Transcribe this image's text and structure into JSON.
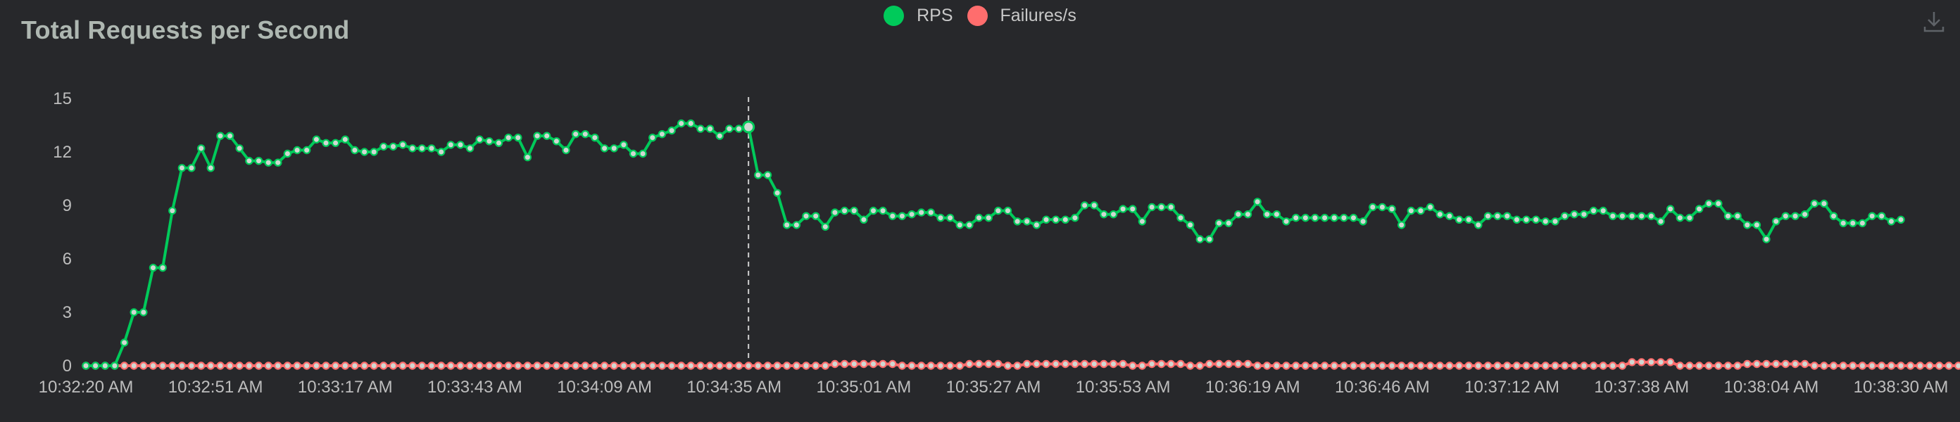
{
  "colors": {
    "background": "#27282b",
    "rps": "#00ca5a",
    "failures": "#ff6d6d",
    "point_fill": "#cfd8d2",
    "title": "#aeb7b1",
    "text": "#c8c8c8"
  },
  "icons": {
    "download": "download-icon"
  },
  "chart_data": {
    "type": "line",
    "title": "Total Requests per Second",
    "xlabel": "",
    "ylabel": "",
    "ylim": [
      0,
      15
    ],
    "yticks": [
      "0",
      "3",
      "6",
      "9",
      "12",
      "15"
    ],
    "xticks": [
      "10:32:20 AM",
      "10:32:51 AM",
      "10:33:17 AM",
      "10:33:43 AM",
      "10:34:09 AM",
      "10:34:35 AM",
      "10:35:01 AM",
      "10:35:27 AM",
      "10:35:53 AM",
      "10:36:19 AM",
      "10:36:46 AM",
      "10:37:12 AM",
      "10:37:38 AM",
      "10:38:04 AM",
      "10:38:30 AM"
    ],
    "legend_position": "top-center",
    "grid": false,
    "marker_index": 69,
    "series": [
      {
        "name": "RPS",
        "color": "#00ca5a",
        "values": [
          0,
          0,
          0,
          0,
          1.3,
          3,
          3,
          5.5,
          5.5,
          8.7,
          11.1,
          11.1,
          12.2,
          11.1,
          12.9,
          12.9,
          12.2,
          11.5,
          11.5,
          11.4,
          11.4,
          11.9,
          12.1,
          12.1,
          12.7,
          12.5,
          12.5,
          12.7,
          12.1,
          12.0,
          12.0,
          12.3,
          12.3,
          12.4,
          12.2,
          12.2,
          12.2,
          12.0,
          12.4,
          12.4,
          12.2,
          12.7,
          12.6,
          12.5,
          12.8,
          12.8,
          11.7,
          12.9,
          12.9,
          12.6,
          12.1,
          13.0,
          13.0,
          12.8,
          12.2,
          12.2,
          12.4,
          11.9,
          11.9,
          12.8,
          13.0,
          13.2,
          13.6,
          13.6,
          13.3,
          13.3,
          12.9,
          13.3,
          13.3,
          13.4,
          10.7,
          10.7,
          9.7,
          7.9,
          7.9,
          8.4,
          8.4,
          7.8,
          8.6,
          8.7,
          8.7,
          8.2,
          8.7,
          8.7,
          8.4,
          8.4,
          8.5,
          8.6,
          8.6,
          8.3,
          8.3,
          7.9,
          7.9,
          8.3,
          8.3,
          8.7,
          8.7,
          8.1,
          8.1,
          7.9,
          8.2,
          8.2,
          8.2,
          8.3,
          9.0,
          9.0,
          8.5,
          8.5,
          8.8,
          8.8,
          8.1,
          8.9,
          8.9,
          8.9,
          8.3,
          7.9,
          7.1,
          7.1,
          8.0,
          8.0,
          8.5,
          8.5,
          9.2,
          8.5,
          8.5,
          8.1,
          8.3,
          8.3,
          8.3,
          8.3,
          8.3,
          8.3,
          8.3,
          8.1,
          8.9,
          8.9,
          8.8,
          7.9,
          8.7,
          8.7,
          8.9,
          8.5,
          8.4,
          8.2,
          8.2,
          7.9,
          8.4,
          8.4,
          8.4,
          8.2,
          8.2,
          8.2,
          8.1,
          8.1,
          8.4,
          8.5,
          8.5,
          8.7,
          8.7,
          8.4,
          8.4,
          8.4,
          8.4,
          8.4,
          8.1,
          8.8,
          8.3,
          8.3,
          8.8,
          9.1,
          9.1,
          8.4,
          8.4,
          7.9,
          7.9,
          7.1,
          8.1,
          8.4,
          8.4,
          8.5,
          9.1,
          9.1,
          8.4,
          8.0,
          8.0,
          8.0,
          8.4,
          8.4,
          8.1,
          8.2
        ]
      },
      {
        "name": "Failures/s",
        "color": "#ff6d6d",
        "values": [
          0,
          0,
          0,
          0,
          0,
          0,
          0,
          0,
          0,
          0,
          0,
          0,
          0,
          0,
          0,
          0,
          0,
          0,
          0,
          0,
          0,
          0,
          0,
          0,
          0,
          0,
          0,
          0,
          0,
          0,
          0,
          0,
          0,
          0,
          0,
          0,
          0,
          0,
          0,
          0,
          0,
          0,
          0,
          0,
          0,
          0,
          0,
          0,
          0,
          0,
          0,
          0,
          0,
          0,
          0,
          0,
          0,
          0,
          0,
          0,
          0,
          0,
          0,
          0,
          0,
          0,
          0,
          0,
          0,
          0,
          0,
          0,
          0,
          0,
          0,
          0,
          0,
          0,
          0.1,
          0.1,
          0.1,
          0.1,
          0.1,
          0.1,
          0.1,
          0,
          0,
          0,
          0,
          0,
          0,
          0,
          0.1,
          0.1,
          0.1,
          0.1,
          0,
          0,
          0.1,
          0.1,
          0.1,
          0.1,
          0.1,
          0.1,
          0.1,
          0.1,
          0.1,
          0.1,
          0.1,
          0,
          0,
          0.1,
          0.1,
          0.1,
          0.1,
          0,
          0,
          0.1,
          0.1,
          0.1,
          0.1,
          0.1,
          0,
          0,
          0,
          0,
          0,
          0,
          0,
          0,
          0,
          0,
          0,
          0,
          0,
          0,
          0,
          0,
          0,
          0,
          0,
          0,
          0,
          0,
          0,
          0,
          0,
          0,
          0,
          0,
          0,
          0,
          0,
          0,
          0,
          0,
          0,
          0,
          0,
          0,
          0,
          0.2,
          0.2,
          0.2,
          0.2,
          0.2,
          0,
          0,
          0,
          0,
          0,
          0,
          0,
          0.1,
          0.1,
          0.1,
          0.1,
          0.1,
          0.1,
          0.1,
          0,
          0,
          0,
          0,
          0,
          0,
          0,
          0,
          0,
          0,
          0,
          0,
          0,
          0,
          0,
          0,
          0,
          0,
          0,
          0,
          0,
          0
        ]
      }
    ]
  }
}
